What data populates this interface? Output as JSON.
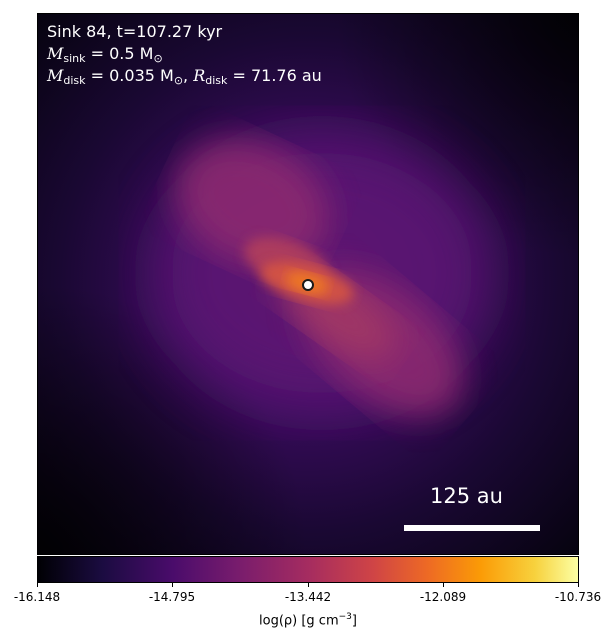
{
  "annotation": {
    "line1": "Sink 84, t=107.27 kyr",
    "msink_symbol": "M",
    "msink_sub": "sink",
    "msink_value": "= 0.5 M",
    "msun_sub": "⊙",
    "mdisk_symbol": "M",
    "mdisk_sub": "disk",
    "mdisk_value": "= 0.035 M",
    "rdisk_symbol": "R",
    "rdisk_sub": "disk",
    "rdisk_value": "= 71.76 au",
    "separator": ",  "
  },
  "scalebar": {
    "label": "125 au"
  },
  "sink": {
    "marker": "sink-position"
  },
  "colorbar": {
    "ticks": [
      "-16.148",
      "-14.795",
      "-13.442",
      "-12.089",
      "-10.736"
    ],
    "label_main": "log(ρ) [g cm",
    "label_exp": "−3",
    "label_close": "]",
    "colormap": "inferno"
  }
}
